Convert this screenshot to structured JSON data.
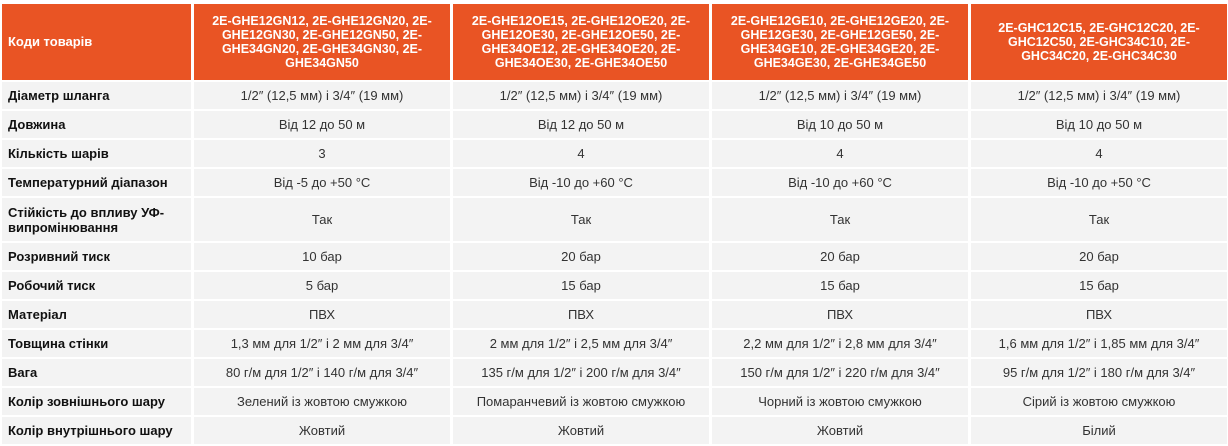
{
  "header": {
    "label": "Коди товарів",
    "columns": [
      "2E-GHE12GN12, 2E-GHE12GN20, 2E-GHE12GN30, 2E-GHE12GN50, 2E-GHE34GN20, 2E-GHE34GN30, 2E-GHE34GN50",
      "2E-GHE12OE15, 2E-GHE12OE20, 2E-GHE12OE30, 2E-GHE12OE50, 2E-GHE34OE12, 2E-GHE34OE20, 2E-GHE34OE30, 2E-GHE34OE50",
      "2E-GHE12GE10, 2E-GHE12GE20, 2E-GHE12GE30, 2E-GHE12GE50, 2E-GHE34GE10, 2E-GHE34GE20, 2E-GHE34GE30, 2E-GHE34GE50",
      "2E-GHC12C15, 2E-GHC12C20, 2E-GHC12C50, 2E-GHC34C10, 2E-GHC34C20, 2E-GHC34C30"
    ]
  },
  "rows": [
    {
      "label": "Діаметр шланга",
      "values": [
        "1/2″ (12,5 мм) і 3/4″ (19 мм)",
        "1/2″ (12,5 мм) і 3/4″ (19 мм)",
        "1/2″ (12,5 мм) і 3/4″ (19 мм)",
        "1/2″ (12,5 мм) і 3/4″ (19 мм)"
      ]
    },
    {
      "label": "Довжина",
      "values": [
        "Від 12 до 50 м",
        "Від 12 до 50 м",
        "Від 10 до 50 м",
        "Від 10 до 50 м"
      ]
    },
    {
      "label": "Кількість шарів",
      "values": [
        "3",
        "4",
        "4",
        "4"
      ]
    },
    {
      "label": "Температурний діапазон",
      "values": [
        "Від -5 до +50 °С",
        "Від -10 до +60 °С",
        "Від -10 до +60 °С",
        "Від -10 до +50 °С"
      ]
    },
    {
      "label": "Стійкість до впливу УФ-випромінювання",
      "values": [
        "Так",
        "Так",
        "Так",
        "Так"
      ]
    },
    {
      "label": "Розривний тиск",
      "values": [
        "10 бар",
        "20 бар",
        "20 бар",
        "20 бар"
      ]
    },
    {
      "label": "Робочий тиск",
      "values": [
        "5 бар",
        "15 бар",
        "15 бар",
        "15 бар"
      ]
    },
    {
      "label": "Матеріал",
      "values": [
        "ПВХ",
        "ПВХ",
        "ПВХ",
        "ПВХ"
      ]
    },
    {
      "label": "Товщина стінки",
      "values": [
        "1,3 мм для 1/2″ і 2 мм для 3/4″",
        "2 мм для 1/2″ і 2,5 мм для 3/4″",
        "2,2 мм для 1/2″ і 2,8 мм для 3/4″",
        "1,6 мм для 1/2″ і 1,85 мм для 3/4″"
      ]
    },
    {
      "label": "Вага",
      "values": [
        "80 г/м для 1/2″ і 140 г/м для 3/4″",
        "135 г/м для 1/2″ і 200 г/м для 3/4″",
        "150 г/м для 1/2″ і 220 г/м для 3/4″",
        "95 г/м для 1/2″ і 180 г/м для 3/4″"
      ]
    },
    {
      "label": "Колір зовнішнього шару",
      "values": [
        "Зелений із жовтою смужкою",
        "Помаранчевий із жовтою смужкою",
        "Чорний із жовтою смужкою",
        "Сірий із жовтою смужкою"
      ]
    },
    {
      "label": "Колір внутрішнього шару",
      "values": [
        "Жовтий",
        "Жовтий",
        "Жовтий",
        "Білий"
      ]
    }
  ],
  "colors": {
    "header_bg": "#E95424",
    "row_bg": "#F3F3F3"
  }
}
